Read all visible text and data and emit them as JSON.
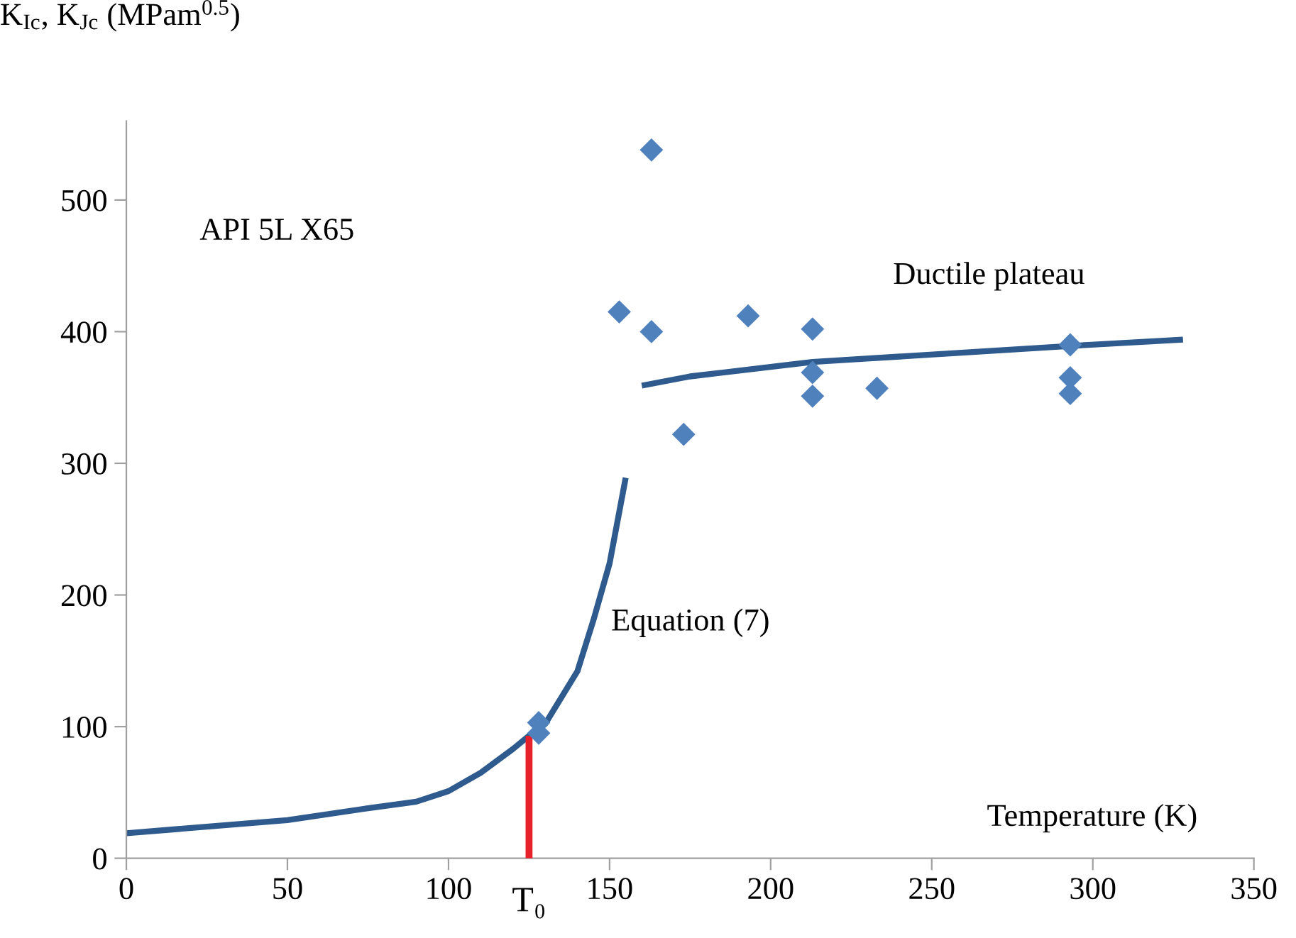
{
  "chart_data": {
    "type": "scatter",
    "ylabel": "K$_{Ic}$, K$_{Jc}$ (MPam$^{0.5}$)",
    "xlabel": "Temperature (K)",
    "xlim": [
      0,
      350
    ],
    "xticks": [
      0,
      50,
      100,
      150,
      200,
      250,
      300,
      350
    ],
    "ylim": [
      0,
      560
    ],
    "yticks": [
      0,
      100,
      200,
      300,
      400,
      500
    ],
    "grid": false,
    "annotations": [
      "API 5L X65",
      "Ductile plateau",
      "Equation (7)",
      "T₀"
    ],
    "series": [
      {
        "type": "line",
        "color": "#2e5a8e",
        "marker": "none",
        "x": [
          0,
          50,
          75,
          90,
          100,
          110,
          120,
          125,
          130,
          140,
          145,
          150,
          155
        ],
        "values": [
          19,
          29,
          38,
          43,
          51,
          65,
          83,
          93,
          102,
          142,
          181,
          224,
          289
        ]
      },
      {
        "type": "line",
        "color": "#2e5a8e",
        "marker": "none",
        "x": [
          160,
          175,
          213,
          292,
          328
        ],
        "values": [
          359,
          366,
          377,
          389,
          394
        ]
      },
      {
        "type": "line",
        "color": "#e8202a",
        "marker": "none",
        "x": [
          125,
          125
        ],
        "values": [
          0,
          93
        ]
      },
      {
        "color": "#4f81bd",
        "marker": "diamond",
        "x": [
          163,
          153,
          163,
          193,
          213,
          213,
          213,
          233,
          173,
          293,
          293,
          293,
          128,
          128
        ],
        "values": [
          538,
          415,
          400,
          412,
          402,
          369,
          351,
          357,
          322,
          390,
          365,
          353,
          103,
          95
        ]
      }
    ]
  }
}
